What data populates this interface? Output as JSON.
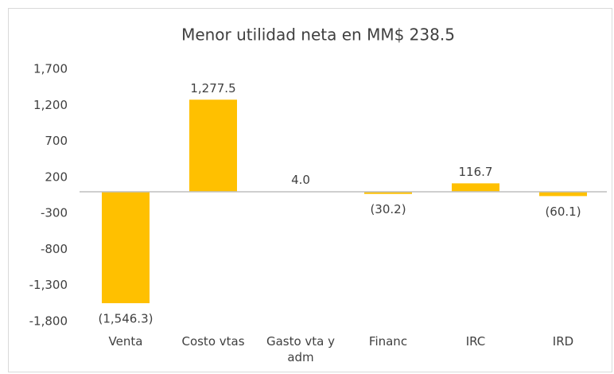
{
  "chart_data": {
    "type": "bar",
    "title": "Menor utilidad neta en MM$ 238.5",
    "categories": [
      "Venta",
      "Costo vtas",
      "Gasto vta y adm",
      "Financ",
      "IRC",
      "IRD"
    ],
    "values": [
      -1546.3,
      1277.5,
      4.0,
      -30.2,
      116.7,
      -60.1
    ],
    "value_labels": [
      "(1,546.3)",
      "1,277.5",
      "4.0",
      "(30.2)",
      "116.7",
      "(60.1)"
    ],
    "color": "#ffc000",
    "ylim": [
      -1800,
      1700
    ],
    "yticks": [
      {
        "value": -1800,
        "label": "-1,800"
      },
      {
        "value": -1300,
        "label": "-1,300"
      },
      -800,
      -300,
      200,
      700,
      {
        "value": 1200,
        "label": "1,200"
      },
      {
        "value": 1700,
        "label": "1,700"
      }
    ],
    "grid": false
  }
}
